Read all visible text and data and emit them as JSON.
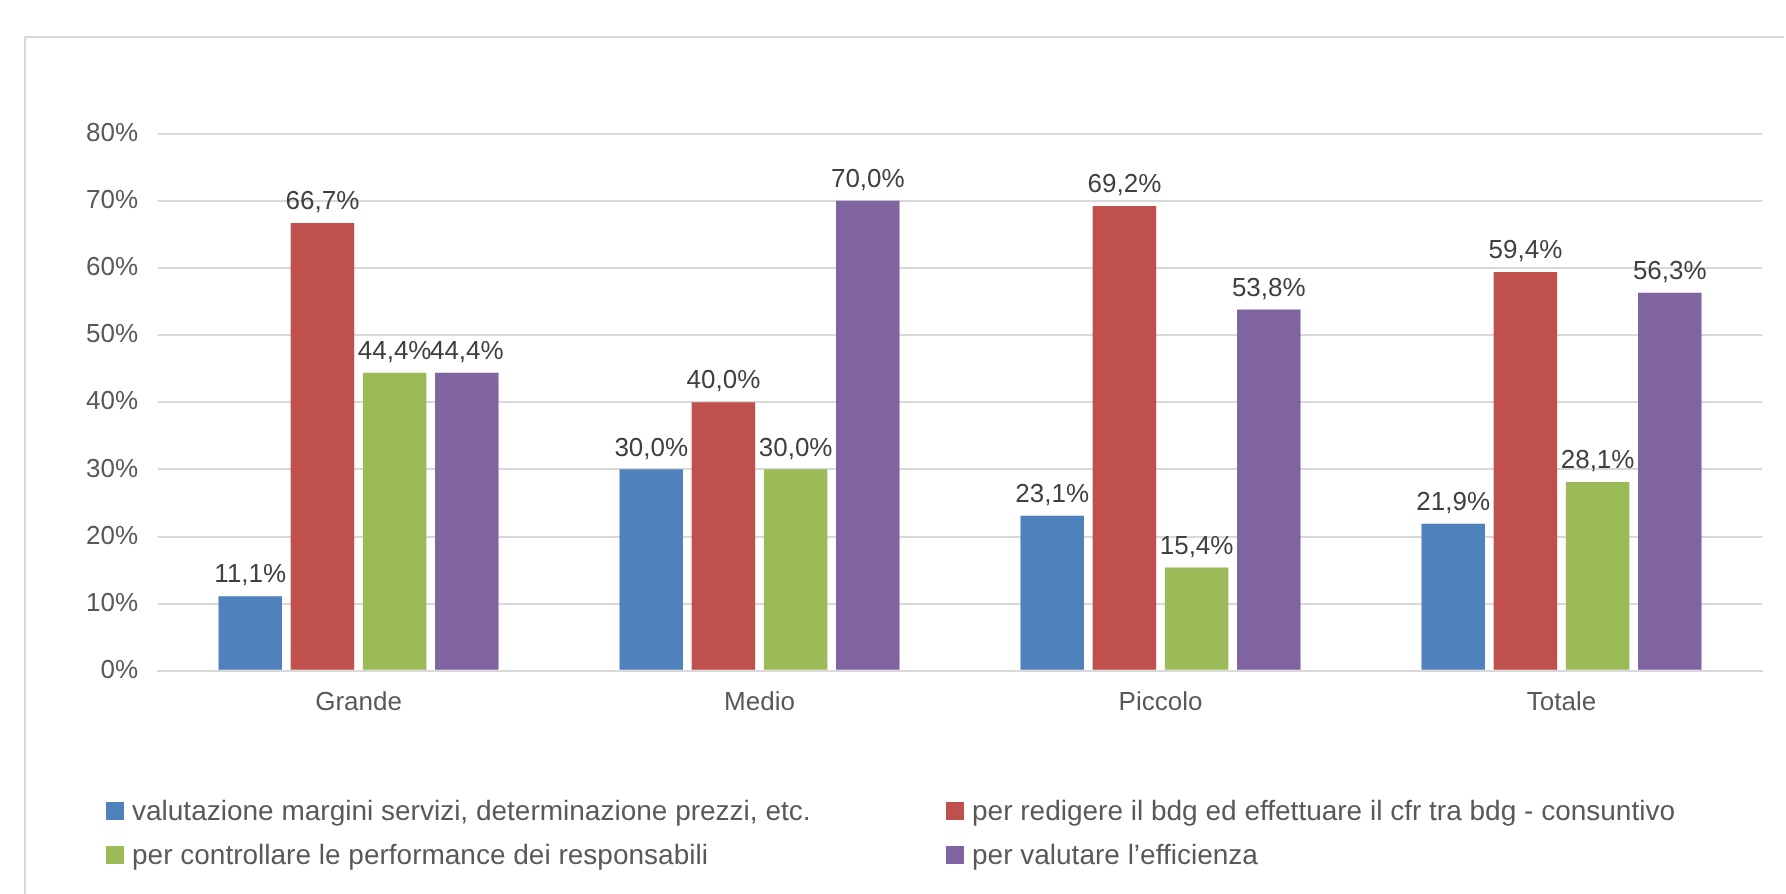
{
  "chart_data": {
    "type": "bar",
    "categories": [
      "Grande",
      "Medio",
      "Piccolo",
      "Totale"
    ],
    "series": [
      {
        "name": "valutazione margini servizi, determinazione prezzi, etc.",
        "color": "#4f81bd",
        "values": [
          11.1,
          30.0,
          23.1,
          21.9
        ],
        "value_labels": [
          "11,1%",
          "30,0%",
          "23,1%",
          "21,9%"
        ]
      },
      {
        "name": "per redigere il bdg ed effettuare il cfr tra bdg - consuntivo",
        "color": "#c0504d",
        "values": [
          66.7,
          40.0,
          69.2,
          59.4
        ],
        "value_labels": [
          "66,7%",
          "40,0%",
          "69,2%",
          "59,4%"
        ]
      },
      {
        "name": "per controllare le performance dei responsabili",
        "color": "#9bbb59",
        "values": [
          44.4,
          30.0,
          15.4,
          28.1
        ],
        "value_labels": [
          "44,4%",
          "30,0%",
          "15,4%",
          "28,1%"
        ]
      },
      {
        "name": "per valutare l’efficienza",
        "color": "#8064a2",
        "values": [
          44.4,
          70.0,
          53.8,
          56.3
        ],
        "value_labels": [
          "44,4%",
          "70,0%",
          "53,8%",
          "56,3%"
        ]
      }
    ],
    "ylim": [
      0,
      80
    ],
    "yticks": [
      {
        "value": 0,
        "label": "0%"
      },
      {
        "value": 10,
        "label": "10%"
      },
      {
        "value": 20,
        "label": "20%"
      },
      {
        "value": 30,
        "label": "30%"
      },
      {
        "value": 40,
        "label": "40%"
      },
      {
        "value": 50,
        "label": "50%"
      },
      {
        "value": 60,
        "label": "60%"
      },
      {
        "value": 70,
        "label": "70%"
      },
      {
        "value": 80,
        "label": "80%"
      }
    ],
    "grid": "y",
    "legend": "bottom"
  }
}
